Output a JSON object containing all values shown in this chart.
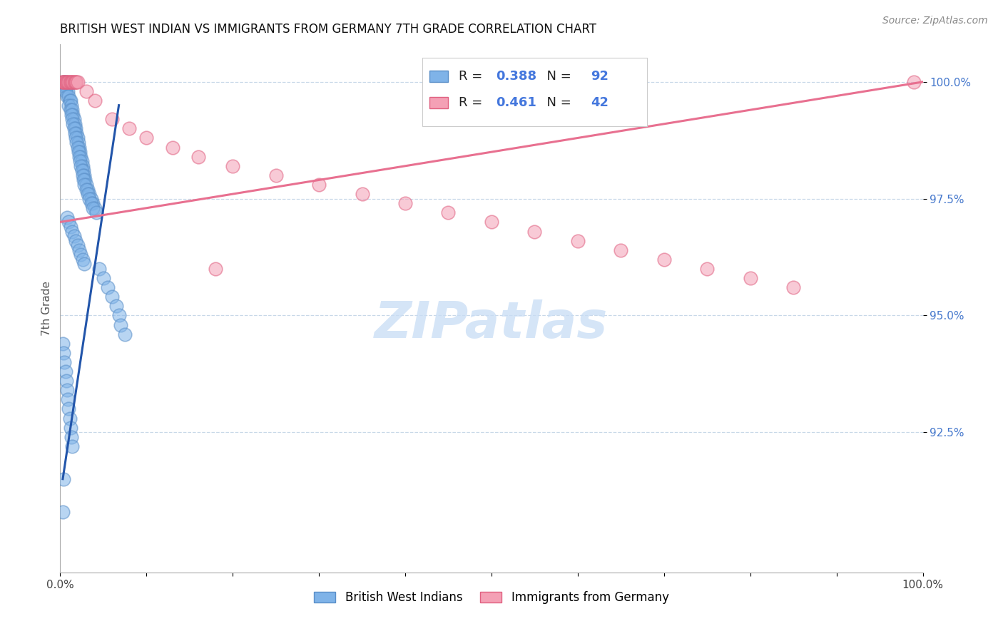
{
  "title": "BRITISH WEST INDIAN VS IMMIGRANTS FROM GERMANY 7TH GRADE CORRELATION CHART",
  "source_text": "Source: ZipAtlas.com",
  "ylabel": "7th Grade",
  "xlim": [
    0.0,
    1.0
  ],
  "ylim": [
    0.895,
    1.008
  ],
  "ytick_labels": [
    "92.5%",
    "95.0%",
    "97.5%",
    "100.0%"
  ],
  "ytick_values": [
    0.925,
    0.95,
    0.975,
    1.0
  ],
  "xtick_labels": [
    "0.0%",
    "",
    "",
    "",
    "",
    "",
    "",
    "",
    "",
    "",
    "100.0%"
  ],
  "xtick_values": [
    0.0,
    0.1,
    0.2,
    0.3,
    0.4,
    0.5,
    0.6,
    0.7,
    0.8,
    0.9,
    1.0
  ],
  "blue_r": "0.388",
  "blue_n": "92",
  "pink_r": "0.461",
  "pink_n": "42",
  "blue_color": "#7FB3E8",
  "pink_color": "#F4A0B5",
  "blue_edge_color": "#5A8FC8",
  "pink_edge_color": "#E06080",
  "trend_blue_color": "#2255AA",
  "trend_pink_color": "#E87090",
  "legend_blue_label": "British West Indians",
  "legend_pink_label": "Immigrants from Germany",
  "watermark_text": "ZIPatlas",
  "blue_scatter_x": [
    0.004,
    0.005,
    0.006,
    0.005,
    0.007,
    0.008,
    0.009,
    0.006,
    0.008,
    0.01,
    0.011,
    0.012,
    0.01,
    0.013,
    0.012,
    0.014,
    0.015,
    0.013,
    0.016,
    0.014,
    0.017,
    0.015,
    0.018,
    0.016,
    0.019,
    0.017,
    0.02,
    0.018,
    0.021,
    0.019,
    0.022,
    0.02,
    0.023,
    0.021,
    0.024,
    0.022,
    0.025,
    0.023,
    0.026,
    0.024,
    0.027,
    0.025,
    0.028,
    0.026,
    0.029,
    0.027,
    0.03,
    0.028,
    0.032,
    0.03,
    0.034,
    0.032,
    0.036,
    0.034,
    0.038,
    0.036,
    0.04,
    0.038,
    0.042,
    0.008,
    0.01,
    0.012,
    0.014,
    0.016,
    0.018,
    0.02,
    0.022,
    0.024,
    0.026,
    0.028,
    0.045,
    0.05,
    0.055,
    0.06,
    0.065,
    0.068,
    0.07,
    0.075,
    0.003,
    0.004,
    0.005,
    0.006,
    0.007,
    0.008,
    0.009,
    0.01,
    0.011,
    0.012,
    0.013,
    0.014,
    0.004,
    0.003
  ],
  "blue_scatter_y": [
    1.0,
    1.0,
    1.0,
    0.999,
    0.999,
    0.999,
    0.998,
    0.998,
    0.997,
    0.997,
    0.996,
    0.996,
    0.995,
    0.995,
    0.994,
    0.994,
    0.993,
    0.993,
    0.992,
    0.992,
    0.991,
    0.991,
    0.99,
    0.99,
    0.989,
    0.989,
    0.988,
    0.988,
    0.987,
    0.987,
    0.986,
    0.986,
    0.985,
    0.985,
    0.984,
    0.984,
    0.983,
    0.983,
    0.982,
    0.982,
    0.981,
    0.981,
    0.98,
    0.98,
    0.979,
    0.979,
    0.978,
    0.978,
    0.977,
    0.977,
    0.976,
    0.976,
    0.975,
    0.975,
    0.974,
    0.974,
    0.973,
    0.973,
    0.972,
    0.971,
    0.97,
    0.969,
    0.968,
    0.967,
    0.966,
    0.965,
    0.964,
    0.963,
    0.962,
    0.961,
    0.96,
    0.958,
    0.956,
    0.954,
    0.952,
    0.95,
    0.948,
    0.946,
    0.944,
    0.942,
    0.94,
    0.938,
    0.936,
    0.934,
    0.932,
    0.93,
    0.928,
    0.926,
    0.924,
    0.922,
    0.915,
    0.908
  ],
  "pink_scatter_x": [
    0.002,
    0.003,
    0.004,
    0.005,
    0.006,
    0.007,
    0.008,
    0.009,
    0.01,
    0.011,
    0.012,
    0.013,
    0.014,
    0.015,
    0.016,
    0.017,
    0.018,
    0.019,
    0.02,
    0.03,
    0.04,
    0.06,
    0.08,
    0.1,
    0.13,
    0.16,
    0.2,
    0.25,
    0.3,
    0.35,
    0.4,
    0.45,
    0.5,
    0.55,
    0.6,
    0.65,
    0.7,
    0.75,
    0.8,
    0.85,
    0.18,
    0.99
  ],
  "pink_scatter_y": [
    1.0,
    1.0,
    1.0,
    1.0,
    1.0,
    1.0,
    1.0,
    1.0,
    1.0,
    1.0,
    1.0,
    1.0,
    1.0,
    1.0,
    1.0,
    1.0,
    1.0,
    1.0,
    1.0,
    0.998,
    0.996,
    0.992,
    0.99,
    0.988,
    0.986,
    0.984,
    0.982,
    0.98,
    0.978,
    0.976,
    0.974,
    0.972,
    0.97,
    0.968,
    0.966,
    0.964,
    0.962,
    0.96,
    0.958,
    0.956,
    0.96,
    1.0
  ],
  "blue_trend_x": [
    0.003,
    0.068
  ],
  "blue_trend_y": [
    0.915,
    0.995
  ],
  "pink_trend_x": [
    0.0,
    1.0
  ],
  "pink_trend_y": [
    0.97,
    1.0
  ]
}
